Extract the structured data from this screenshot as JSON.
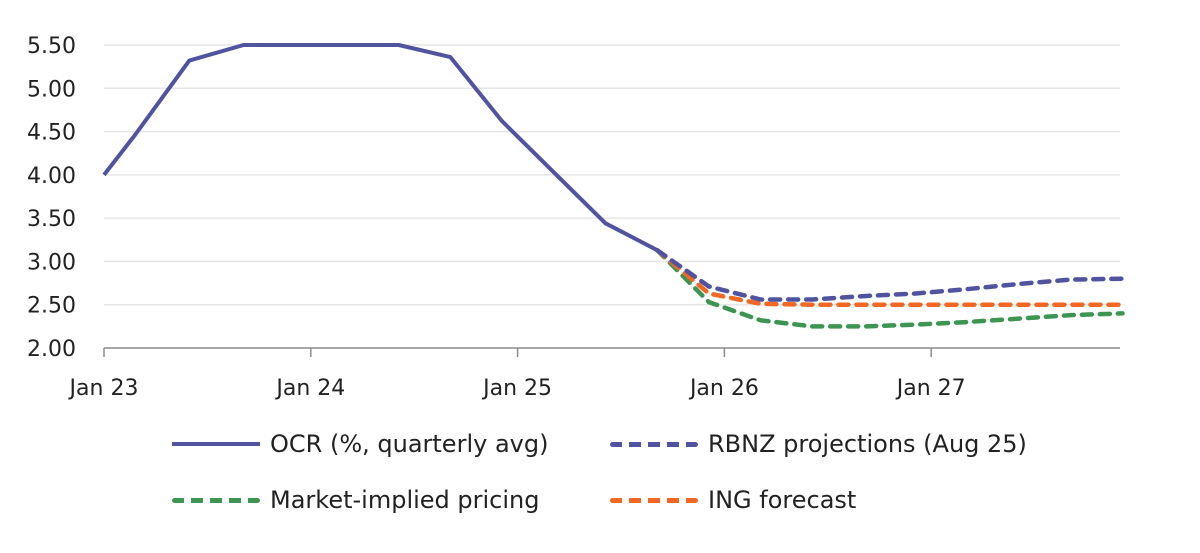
{
  "chart_data": {
    "type": "line",
    "title": "",
    "xlabel": "",
    "ylabel": "",
    "ylim": [
      2.0,
      5.5
    ],
    "y_ticks": [
      "5.50",
      "5.00",
      "4.50",
      "4.00",
      "3.50",
      "3.00",
      "2.50",
      "2.00"
    ],
    "y_tick_values": [
      5.5,
      5.0,
      4.5,
      4.0,
      3.5,
      3.0,
      2.5,
      2.0
    ],
    "x_ticks": [
      "Jan 23",
      "Jan 24",
      "Jan 25",
      "Jan 26",
      "Jan 27"
    ],
    "x_tick_quarters": [
      0,
      4,
      8,
      12,
      16
    ],
    "x_range_quarters": [
      0,
      19.7
    ],
    "grid": "horizontal",
    "legend_position": "bottom",
    "series": [
      {
        "name": "OCR (%, quarterly avg)",
        "color": "#5054a0",
        "style": "solid",
        "x": [
          0,
          0.6,
          1.65,
          2.7,
          3.7,
          4.7,
          5.7,
          6.7,
          7.7,
          8.7,
          9.7,
          10.7
        ],
        "values": [
          4.0,
          4.46,
          5.32,
          5.5,
          5.5,
          5.5,
          5.5,
          5.36,
          4.62,
          4.03,
          3.44,
          3.13
        ]
      },
      {
        "name": "RBNZ projections (Aug 25)",
        "color": "#5054a0",
        "style": "dashed",
        "x": [
          10.7,
          11.7,
          12.7,
          13.7,
          14.7,
          15.7,
          16.7,
          17.7,
          18.7,
          19.7
        ],
        "values": [
          3.13,
          2.71,
          2.56,
          2.56,
          2.6,
          2.63,
          2.68,
          2.74,
          2.79,
          2.8
        ]
      },
      {
        "name": "Market-implied pricing",
        "color": "#3c9550",
        "style": "dashed",
        "x": [
          10.7,
          11.7,
          12.7,
          13.7,
          14.7,
          15.7,
          16.7,
          17.7,
          18.7,
          19.7
        ],
        "values": [
          3.13,
          2.53,
          2.32,
          2.25,
          2.25,
          2.27,
          2.3,
          2.34,
          2.38,
          2.4
        ]
      },
      {
        "name": "ING forecast",
        "color": "#f26722",
        "style": "dashed",
        "x": [
          10.7,
          11.7,
          12.7,
          13.7,
          14.7,
          15.7,
          16.7,
          17.7,
          18.7,
          19.7
        ],
        "values": [
          3.13,
          2.63,
          2.51,
          2.5,
          2.5,
          2.5,
          2.5,
          2.5,
          2.5,
          2.5
        ]
      }
    ]
  },
  "legend": [
    {
      "label": "OCR (%, quarterly avg)",
      "color": "#5054a0",
      "style": "solid"
    },
    {
      "label": "RBNZ projections (Aug 25)",
      "color": "#5054a0",
      "style": "dashed"
    },
    {
      "label": "Market-implied pricing",
      "color": "#3c9550",
      "style": "dashed"
    },
    {
      "label": "ING forecast",
      "color": "#f26722",
      "style": "dashed"
    }
  ]
}
